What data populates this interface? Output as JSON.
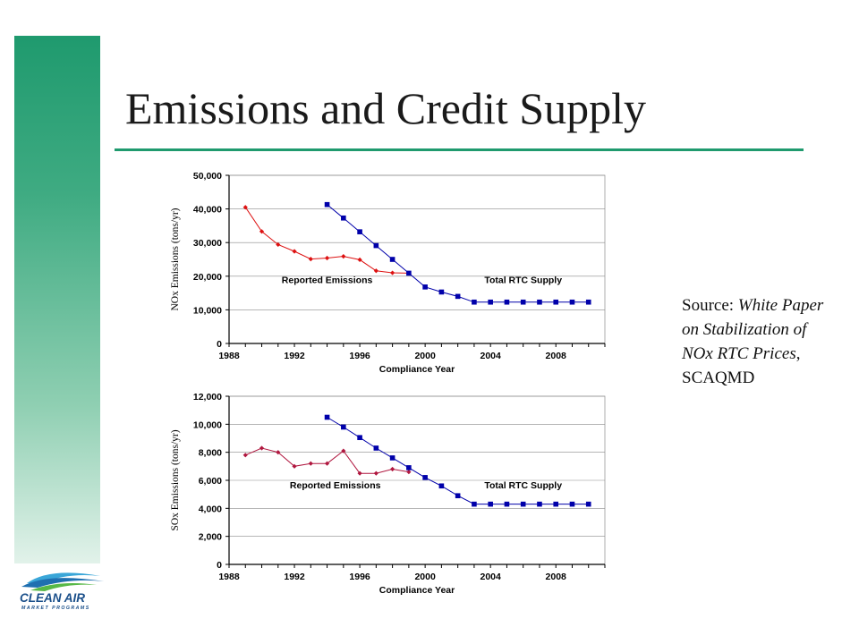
{
  "slide": {
    "title": "Emissions and Credit Supply",
    "accent_color": "#1f9a6e"
  },
  "source_note": {
    "prefix": "Source: ",
    "doc_title": "White Paper on Stabilization of NOx RTC Prices",
    "suffix": ", SCAQMD"
  },
  "logo": {
    "icon": "clean-air-wave-logo",
    "line1": "CLEAN AIR",
    "line2": "MARKET PROGRAMS"
  },
  "chart_data": [
    {
      "type": "line",
      "xlabel": "Compliance Year",
      "ylabel": "NOx Emissions (tons/yr)",
      "xlim": [
        1988,
        2011
      ],
      "ylim": [
        0,
        50000
      ],
      "xticks": [
        1988,
        1992,
        1996,
        2000,
        2004,
        2008
      ],
      "yticks": [
        0,
        10000,
        20000,
        30000,
        40000,
        50000
      ],
      "ytick_labels": [
        "0",
        "10,000",
        "20,000",
        "30,000",
        "40,000",
        "50,000"
      ],
      "grid": true,
      "legend": "none",
      "series": [
        {
          "name": "Reported Emissions",
          "color": "#dd1111",
          "marker": "diamond",
          "label_at": [
            1994,
            18000
          ],
          "x": [
            1989,
            1990,
            1991,
            1992,
            1993,
            1994,
            1995,
            1996,
            1997,
            1998,
            1999
          ],
          "y": [
            40500,
            33300,
            29400,
            27400,
            25100,
            25400,
            25900,
            24900,
            21600,
            21000,
            20900
          ]
        },
        {
          "name": "Total RTC Supply",
          "color": "#0000aa",
          "marker": "square",
          "label_at": [
            2006,
            18000
          ],
          "x": [
            1994,
            1995,
            1996,
            1997,
            1998,
            1999,
            2000,
            2001,
            2002,
            2003,
            2004,
            2005,
            2006,
            2007,
            2008,
            2009,
            2010
          ],
          "y": [
            41300,
            37300,
            33200,
            29100,
            25000,
            20900,
            16800,
            15300,
            14000,
            12300,
            12300,
            12300,
            12300,
            12300,
            12300,
            12300,
            12300
          ]
        }
      ]
    },
    {
      "type": "line",
      "xlabel": "Compliance Year",
      "ylabel": "SOx Emissions (tons/yr)",
      "xlim": [
        1988,
        2011
      ],
      "ylim": [
        0,
        12000
      ],
      "xticks": [
        1988,
        1992,
        1996,
        2000,
        2004,
        2008
      ],
      "yticks": [
        0,
        2000,
        4000,
        6000,
        8000,
        10000,
        12000
      ],
      "ytick_labels": [
        "0",
        "2,000",
        "4,000",
        "6,000",
        "8,000",
        "10,000",
        "12,000"
      ],
      "grid": true,
      "legend": "none",
      "series": [
        {
          "name": "Reported Emissions",
          "color": "#b0173f",
          "marker": "diamond",
          "label_at": [
            1994.5,
            5420
          ],
          "x": [
            1989,
            1990,
            1991,
            1992,
            1993,
            1994,
            1995,
            1996,
            1997,
            1998,
            1999
          ],
          "y": [
            7800,
            8300,
            8000,
            7000,
            7200,
            7200,
            8100,
            6500,
            6500,
            6800,
            6600
          ]
        },
        {
          "name": "Total RTC Supply",
          "color": "#0000aa",
          "marker": "square",
          "label_at": [
            2006,
            5420
          ],
          "x": [
            1994,
            1995,
            1996,
            1997,
            1998,
            1999,
            2000,
            2001,
            2002,
            2003,
            2004,
            2005,
            2006,
            2007,
            2008,
            2009,
            2010
          ],
          "y": [
            10500,
            9800,
            9050,
            8300,
            7600,
            6900,
            6200,
            5600,
            4900,
            4300,
            4300,
            4300,
            4300,
            4300,
            4300,
            4300,
            4300
          ]
        }
      ]
    }
  ]
}
